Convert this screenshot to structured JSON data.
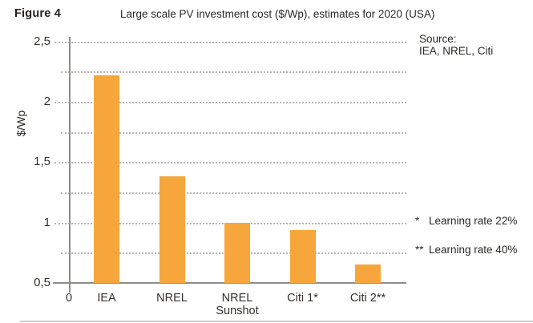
{
  "figure_label": "Figure 4",
  "source": {
    "label": "Source:",
    "value": "IEA, NREL, Citi"
  },
  "notes": [
    {
      "marker": "*",
      "text": "Learning rate 22%"
    },
    {
      "marker": "**",
      "text": "Learning rate 40%"
    }
  ],
  "chart_data": {
    "type": "bar",
    "title": "Large scale PV investment cost ($/Wp), estimates for 2020 (USA)",
    "categories": [
      "IEA",
      "NREL",
      "NREL\nSunshot",
      "Citi 1*",
      "Citi 2**"
    ],
    "values": [
      2.22,
      1.38,
      1.0,
      0.94,
      0.65
    ],
    "xlabel": "",
    "ylabel": "$/Wp",
    "ylim": [
      0.5,
      2.5
    ],
    "x_origin_label": "0",
    "yticks": [
      {
        "value": 0.5,
        "label": "0,5"
      },
      {
        "value": 0.75,
        "label": ""
      },
      {
        "value": 1,
        "label": "1"
      },
      {
        "value": 1.25,
        "label": ""
      },
      {
        "value": 1.5,
        "label": "1,5"
      },
      {
        "value": 1.75,
        "label": ""
      },
      {
        "value": 2,
        "label": "2"
      },
      {
        "value": 2.25,
        "label": ""
      },
      {
        "value": 2.5,
        "label": "2,5"
      }
    ],
    "grid": "dotted",
    "legend": "none",
    "bar_color": "#F7A63C",
    "axis_color": "#8f8d8a",
    "grid_color": "#b8b5b1"
  }
}
